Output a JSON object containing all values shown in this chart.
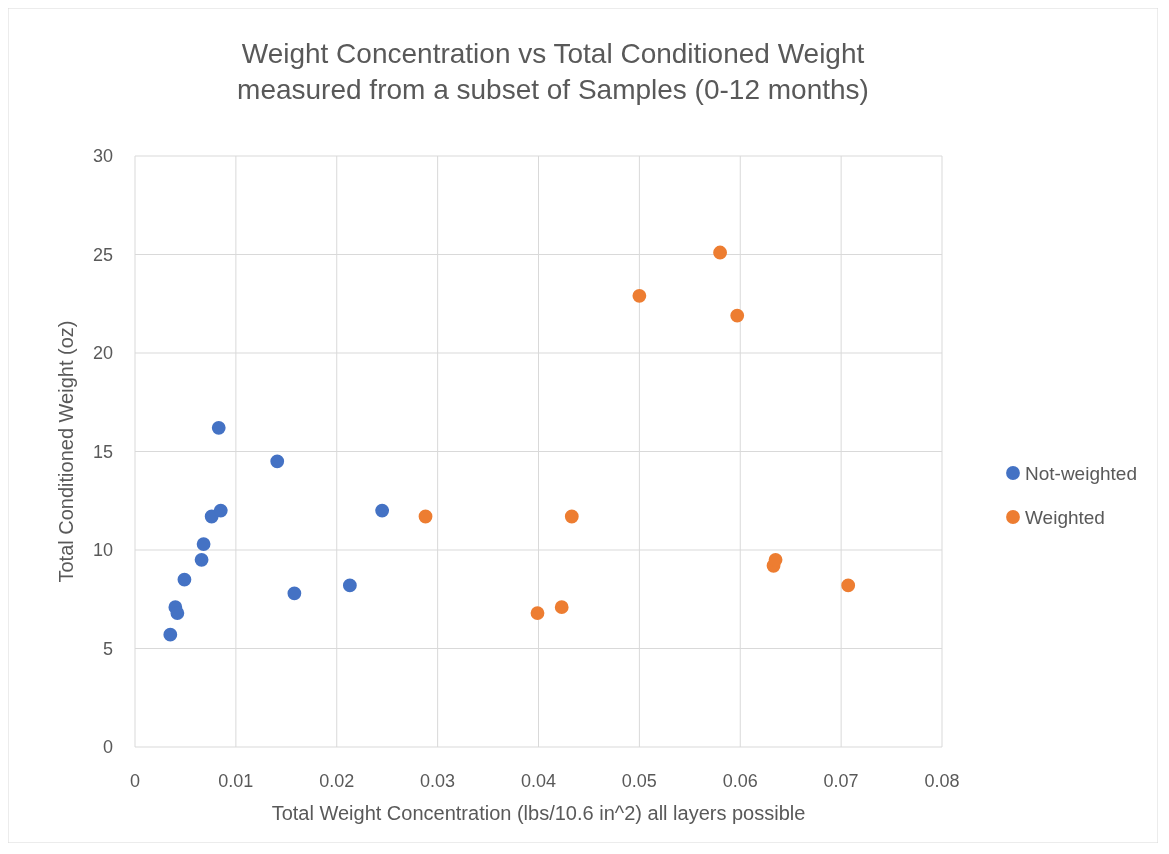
{
  "chart_data": {
    "type": "scatter",
    "title": "Weight Concentration vs Total Conditioned Weight measured from a subset of Samples (0-12 months)",
    "xlabel": "Total Weight Concentration (lbs/10.6 in^2) all layers possible",
    "ylabel": "Total Conditioned Weight (oz)",
    "xlim": [
      0,
      0.08
    ],
    "xticks": [
      0,
      0.01,
      0.02,
      0.03,
      0.04,
      0.05,
      0.06,
      0.07,
      0.08
    ],
    "ylim": [
      0,
      30
    ],
    "yticks": [
      0,
      5,
      10,
      15,
      20,
      25,
      30
    ],
    "grid": true,
    "legend": "right",
    "marker": "circle",
    "series": [
      {
        "name": "Not-weighted",
        "color": "#4472c4",
        "x": [
          0.0035,
          0.004,
          0.0042,
          0.0049,
          0.0066,
          0.0068,
          0.0076,
          0.0083,
          0.0085,
          0.0141,
          0.0158,
          0.0213,
          0.0245
        ],
        "values": [
          5.7,
          7.1,
          6.8,
          8.5,
          9.5,
          10.3,
          11.7,
          16.2,
          12,
          14.5,
          7.8,
          8.2,
          12
        ]
      },
      {
        "name": "Weighted",
        "color": "#ed7d31",
        "x": [
          0.0288,
          0.0399,
          0.0423,
          0.0433,
          0.05,
          0.058,
          0.0597,
          0.0633,
          0.0635,
          0.0707
        ],
        "values": [
          11.7,
          6.8,
          7.1,
          11.7,
          22.9,
          25.1,
          21.9,
          9.2,
          9.5,
          8.2
        ]
      }
    ]
  }
}
